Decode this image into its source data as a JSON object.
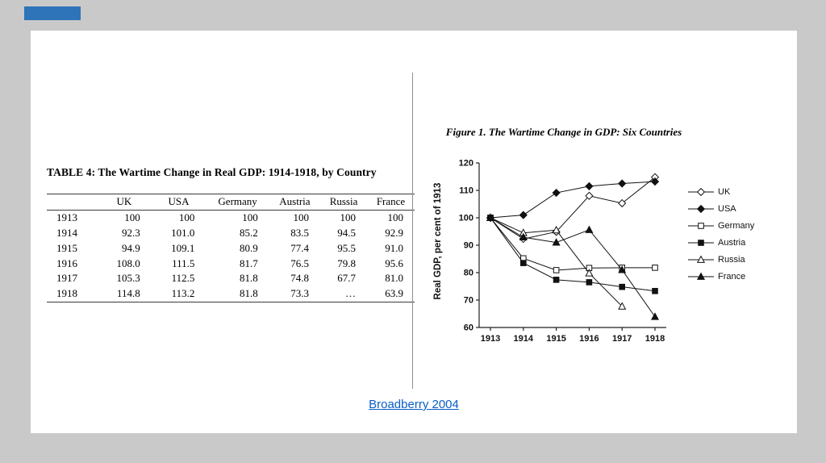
{
  "page": {
    "background_color": "#c9c9c9",
    "accent_color": "#2e74b9",
    "link_color": "#0a5ec7"
  },
  "slide": {
    "table": {
      "title": "TABLE 4: The Wartime Change in Real GDP: 1914-1918, by Country",
      "columns": [
        "",
        "UK",
        "USA",
        "Germany",
        "Austria",
        "Russia",
        "France"
      ],
      "rows": [
        [
          "1913",
          "100",
          "100",
          "100",
          "100",
          "100",
          "100"
        ],
        [
          "1914",
          "92.3",
          "101.0",
          "85.2",
          "83.5",
          "94.5",
          "92.9"
        ],
        [
          "1915",
          "94.9",
          "109.1",
          "80.9",
          "77.4",
          "95.5",
          "91.0"
        ],
        [
          "1916",
          "108.0",
          "111.5",
          "81.7",
          "76.5",
          "79.8",
          "95.6"
        ],
        [
          "1917",
          "105.3",
          "112.5",
          "81.8",
          "74.8",
          "67.7",
          "81.0"
        ],
        [
          "1918",
          "114.8",
          "113.2",
          "81.8",
          "73.3",
          "…",
          "63.9"
        ]
      ]
    },
    "figure": {
      "title": "Figure 1. The Wartime Change in GDP: Six Countries"
    },
    "citation": "Broadberry 2004"
  },
  "chart_data": {
    "type": "line",
    "title": "Figure 1. The Wartime Change in GDP: Six Countries",
    "xlabel": "",
    "ylabel": "Real GDP, per cent of 1913",
    "x": [
      1913,
      1914,
      1915,
      1916,
      1917,
      1918
    ],
    "ylim": [
      60,
      120
    ],
    "yticks": [
      60,
      70,
      80,
      90,
      100,
      110,
      120
    ],
    "grid": false,
    "legend_position": "right",
    "line_color": "#111111",
    "series": [
      {
        "name": "UK",
        "marker": "open-diamond",
        "values": [
          100,
          92.3,
          94.9,
          108.0,
          105.3,
          114.8
        ]
      },
      {
        "name": "USA",
        "marker": "filled-diamond",
        "values": [
          100,
          101.0,
          109.1,
          111.5,
          112.5,
          113.2
        ]
      },
      {
        "name": "Germany",
        "marker": "open-square",
        "values": [
          100,
          85.2,
          80.9,
          81.7,
          81.8,
          81.8
        ]
      },
      {
        "name": "Austria",
        "marker": "filled-square",
        "values": [
          100,
          83.5,
          77.4,
          76.5,
          74.8,
          73.3
        ]
      },
      {
        "name": "Russia",
        "marker": "open-triangle",
        "values": [
          100,
          94.5,
          95.5,
          79.8,
          67.7,
          null
        ]
      },
      {
        "name": "France",
        "marker": "filled-triangle",
        "values": [
          100,
          92.9,
          91.0,
          95.6,
          81.0,
          63.9
        ]
      }
    ]
  }
}
